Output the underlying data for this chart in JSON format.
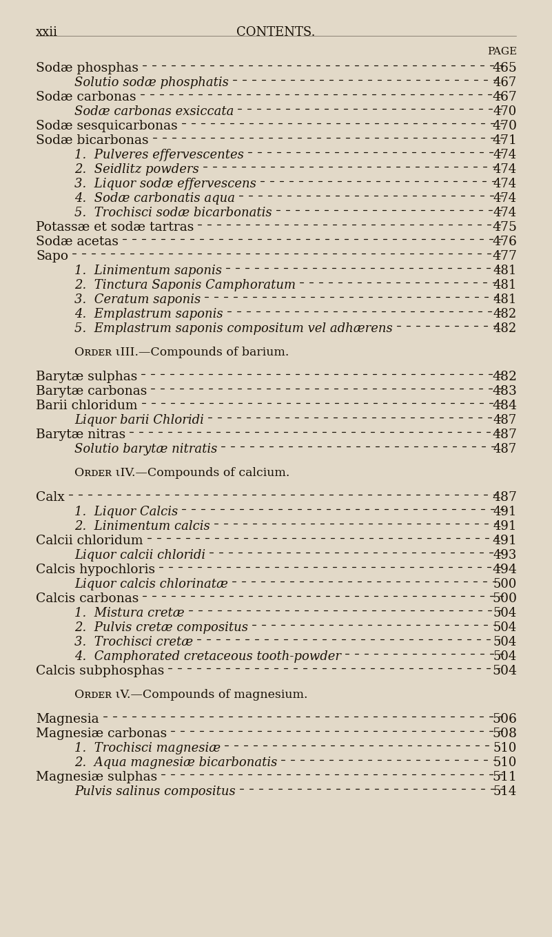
{
  "bg_color": "#e2d9c8",
  "text_color": "#1a1208",
  "header_left": "xxii",
  "header_center": "CONTENTS.",
  "page_label": "PAGE",
  "entries": [
    {
      "text": "Sodæ phosphas",
      "indent": 0,
      "italic": false,
      "page": "465"
    },
    {
      "text": "Solutio sodæ phosphatis",
      "indent": 1,
      "italic": true,
      "page": "467"
    },
    {
      "text": "Sodæ carbonas",
      "indent": 0,
      "italic": false,
      "page": "467"
    },
    {
      "text": "Sodæ carbonas exsiccata",
      "indent": 1,
      "italic": true,
      "page": "470"
    },
    {
      "text": "Sodæ sesquicarbonas",
      "indent": 0,
      "italic": false,
      "page": "470"
    },
    {
      "text": "Sodæ bicarbonas",
      "indent": 0,
      "italic": false,
      "page": "471"
    },
    {
      "text": "1.  Pulveres effervescentes",
      "indent": 1,
      "italic": true,
      "page": "474"
    },
    {
      "text": "2.  Seidlitz powders",
      "indent": 1,
      "italic": true,
      "page": "474"
    },
    {
      "text": "3.  Liquor sodæ effervescens",
      "indent": 1,
      "italic": true,
      "page": "474"
    },
    {
      "text": "4.  Sodæ carbonatis aqua",
      "indent": 1,
      "italic": true,
      "page": "474"
    },
    {
      "text": "5.  Trochisci sodæ bicarbonatis",
      "indent": 1,
      "italic": true,
      "page": "474"
    },
    {
      "text": "Potassæ et sodæ tartras",
      "indent": 0,
      "italic": false,
      "page": "475"
    },
    {
      "text": "Sodæ acetas",
      "indent": 0,
      "italic": false,
      "page": "476"
    },
    {
      "text": "Sapo",
      "indent": 0,
      "italic": false,
      "page": "477"
    },
    {
      "text": "1.  Linimentum saponis",
      "indent": 1,
      "italic": true,
      "page": "481"
    },
    {
      "text": "2.  Tinctura Saponis Camphoratum",
      "indent": 1,
      "italic": true,
      "page": "481"
    },
    {
      "text": "3.  Ceratum saponis",
      "indent": 1,
      "italic": true,
      "page": "481"
    },
    {
      "text": "4.  Emplastrum saponis",
      "indent": 1,
      "italic": true,
      "page": "482"
    },
    {
      "text": "5.  Emplastrum saponis compositum vel adhærens",
      "indent": 1,
      "italic": true,
      "page": "482"
    },
    {
      "text": "",
      "indent": 0,
      "italic": false,
      "page": "",
      "spacer": true
    },
    {
      "text": "Oʀᴅᴇʀ ιIII.—Compounds of barium.",
      "indent": 1,
      "italic": false,
      "page": "",
      "order": true
    },
    {
      "text": "",
      "indent": 0,
      "italic": false,
      "page": "",
      "spacer": true
    },
    {
      "text": "Barytæ sulphas",
      "indent": 0,
      "italic": false,
      "page": "482"
    },
    {
      "text": "Barytæ carbonas",
      "indent": 0,
      "italic": false,
      "page": "483"
    },
    {
      "text": "Barii chloridum",
      "indent": 0,
      "italic": false,
      "page": "484"
    },
    {
      "text": "Liquor barii Chloridi",
      "indent": 1,
      "italic": true,
      "page": "487"
    },
    {
      "text": "Barytæ nitras",
      "indent": 0,
      "italic": false,
      "page": "487"
    },
    {
      "text": "Solutio barytæ nitratis",
      "indent": 1,
      "italic": true,
      "page": "487"
    },
    {
      "text": "",
      "indent": 0,
      "italic": false,
      "page": "",
      "spacer": true
    },
    {
      "text": "Oʀᴅᴇʀ ιIV.—Compounds of calcium.",
      "indent": 1,
      "italic": false,
      "page": "",
      "order": true
    },
    {
      "text": "",
      "indent": 0,
      "italic": false,
      "page": "",
      "spacer": true
    },
    {
      "text": "Calx",
      "indent": 0,
      "italic": false,
      "page": "487"
    },
    {
      "text": "1.  Liquor Calcis",
      "indent": 1,
      "italic": true,
      "page": "491"
    },
    {
      "text": "2.  Linimentum calcis",
      "indent": 1,
      "italic": true,
      "page": "491"
    },
    {
      "text": "Calcii chloridum",
      "indent": 0,
      "italic": false,
      "page": "491"
    },
    {
      "text": "Liquor calcii chloridi",
      "indent": 1,
      "italic": true,
      "page": "493"
    },
    {
      "text": "Calcis hypochloris",
      "indent": 0,
      "italic": false,
      "page": "494"
    },
    {
      "text": "Liquor calcis chlorinatæ",
      "indent": 1,
      "italic": true,
      "page": "500"
    },
    {
      "text": "Calcis carbonas",
      "indent": 0,
      "italic": false,
      "page": "500"
    },
    {
      "text": "1.  Mistura cretæ",
      "indent": 1,
      "italic": true,
      "page": "504"
    },
    {
      "text": "2.  Pulvis cretæ compositus",
      "indent": 1,
      "italic": true,
      "page": "504"
    },
    {
      "text": "3.  Trochisci cretæ",
      "indent": 1,
      "italic": true,
      "page": "504"
    },
    {
      "text": "4.  Camphorated cretaceous tooth-powder",
      "indent": 1,
      "italic": true,
      "page": "504"
    },
    {
      "text": "Calcis subphosphas",
      "indent": 0,
      "italic": false,
      "page": "504"
    },
    {
      "text": "",
      "indent": 0,
      "italic": false,
      "page": "",
      "spacer": true
    },
    {
      "text": "Oʀᴅᴇʀ ιV.—Compounds of magnesium.",
      "indent": 1,
      "italic": false,
      "page": "",
      "order": true
    },
    {
      "text": "",
      "indent": 0,
      "italic": false,
      "page": "",
      "spacer": true
    },
    {
      "text": "Magnesia",
      "indent": 0,
      "italic": false,
      "page": "506"
    },
    {
      "text": "Magnesiæ carbonas",
      "indent": 0,
      "italic": false,
      "page": "508"
    },
    {
      "text": "1.  Trochisci magnesiæ",
      "indent": 1,
      "italic": true,
      "page": "510"
    },
    {
      "text": "2.  Aqua magnesiæ bicarbonatis",
      "indent": 1,
      "italic": true,
      "page": "510"
    },
    {
      "text": "Magnesiæ sulphas",
      "indent": 0,
      "italic": false,
      "page": "511"
    },
    {
      "text": "Pulvis salinus compositus",
      "indent": 1,
      "italic": true,
      "page": "514"
    }
  ]
}
